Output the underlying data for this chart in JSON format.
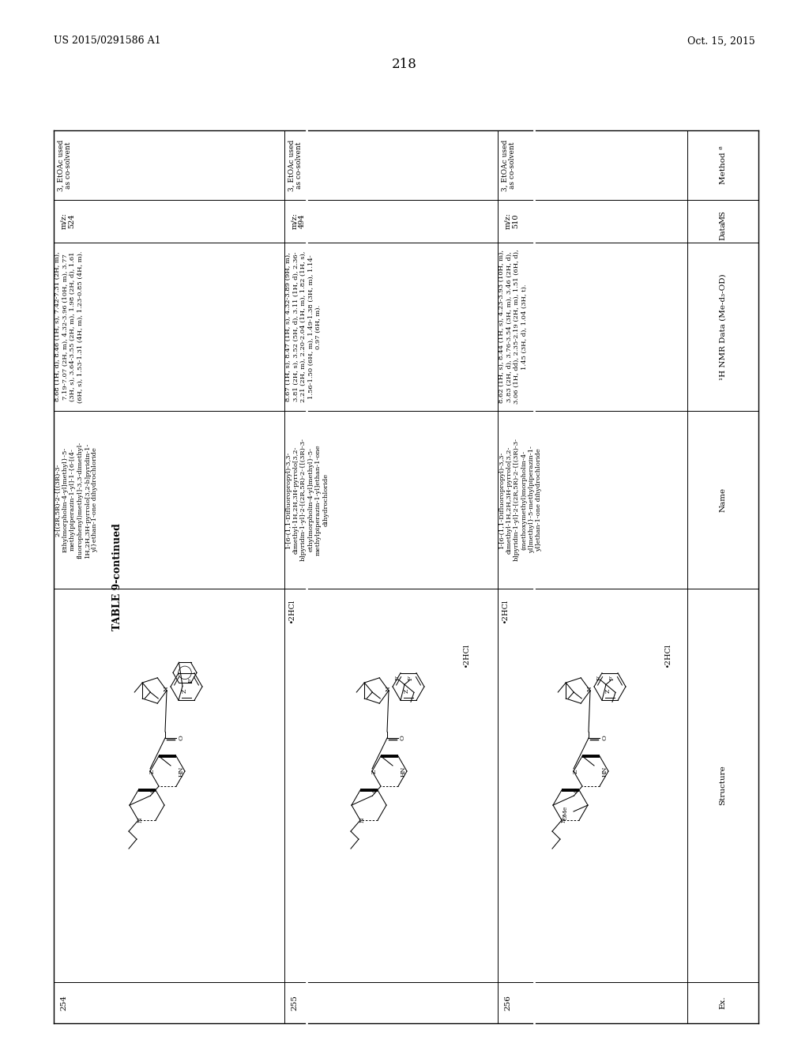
{
  "page_number": "218",
  "patent_number": "US 2015/0291586 A1",
  "patent_date": "Oct. 15, 2015",
  "table_title": "TABLE 9-continued",
  "background_color": "#ffffff",
  "rows": [
    {
      "ex": "254",
      "name_lines": [
        "2-[(2R,5R)-2-{[(3R)-3-",
        "Ethylmorpholin-4-yl]methyl}-5-",
        "methylpiperazin-1-yl]-1-{6-[(4-",
        "fluorophenyl)methyl]-3,3-dimethyl-",
        "1H,2H,3H-pyrrolo[3,2-b]pyridin-1-",
        "yl}ethan-1-one dihydrochloride"
      ],
      "nmr_lines": [
        "8.68 (1H, d), 8.46 (1H, s), 7.42-7.31 (2H, m),",
        "7.19-7.07 (2H, m), 4.32-3.96 (10H, m), 3.77",
        "(3H, s), 3.64-3.55 (2H, m), 1.98 (2H, d), 1.61",
        "(6H, s), 1.53-1.31 (4H, m), 1.23-0.85 (4H, m)."
      ],
      "ms_lines": [
        "m/z:",
        "524"
      ],
      "method_lines": [
        "3, EtOAc used",
        "as co-solvent"
      ],
      "salt": ""
    },
    {
      "ex": "255",
      "name_lines": [
        "1-[6-(1,1-Difluoropropyl)-3,3-",
        "dimethyl-1H,2H,3H-pyrrolo[3,2-",
        "b]pyridin-1-yl]-2-[(2R,5R)-2-{[(3R)-3-",
        "ethylmorpholin-4-yl]methyl}-5-",
        "methylpiperazin-1-yl]ethan-1-one",
        "dihydrochloride"
      ],
      "nmr_lines": [
        "8.67 (1H, s), 8.47 (1H, s), 4.32-3.89 (9H, m),",
        "3.81 (2H, s), 3.52 (5H, d), 3.11 (1H, d), 2.36-",
        "2.21 (2H, m), 2.20-2.04 (1H, m), 1.82 (1H, s),",
        "1.56-1.50 (6H, m), 1.49-1.38 (3H, m), 1.14-",
        "0.97 (6H, m)."
      ],
      "ms_lines": [
        "m/z:",
        "494"
      ],
      "method_lines": [
        "3, EtOAc used",
        "as co-solvent"
      ],
      "salt": "∙2HCl"
    },
    {
      "ex": "256",
      "name_lines": [
        "1-[6-(1,1-Difluoropropyl)-3,3-",
        "dimethyl-1H,2H,3H-pyrrolo[3,2-",
        "b]pyridin-1-yl]-2-[(2R,5R)-2-{[(3R)-3-",
        "(methoxymethyl)morpholin-4-",
        "yl]methyl}-5-methylpiperazin-1-",
        "yl]ethan-1-one dihydrochloride"
      ],
      "nmr_lines": [
        "8.62 (1H, s), 8.44 (1H, s), 4.23-3.93 (10H, m),",
        "3.83 (2H, d), 3.76-3.54 (3H, m), 3.46 (2H, d),",
        "3.06 (1H, dd), 2.35-2.19 (2H, m), 1.51 (6H, d),",
        "1.45 (3H, d), 1.04 (3H, t)."
      ],
      "ms_lines": [
        "m/z:",
        "510"
      ],
      "method_lines": [
        "3, EtOAc used",
        "as co-solvent"
      ],
      "salt": "∙2HCl"
    }
  ]
}
